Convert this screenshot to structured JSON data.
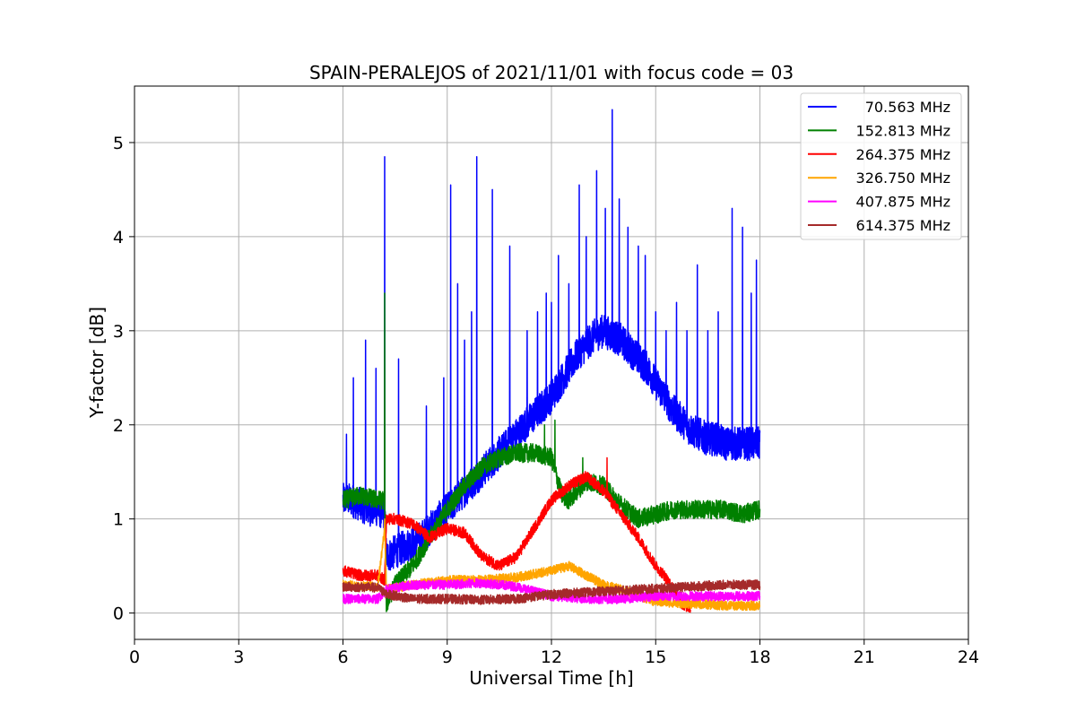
{
  "chart_data": {
    "type": "line",
    "title": "SPAIN-PERALEJOS of 2021/11/01 with focus code = 03",
    "xlabel": "Universal Time [h]",
    "ylabel": "Y-factor [dB]",
    "xlim": [
      0,
      24
    ],
    "ylim": [
      -0.28,
      5.6
    ],
    "xticks": [
      0,
      3,
      6,
      9,
      12,
      15,
      18,
      21,
      24
    ],
    "yticks": [
      0,
      1,
      2,
      3,
      4,
      5
    ],
    "grid": true,
    "legend_position": "top-right",
    "series": [
      {
        "name": "70.563 MHz",
        "color": "#0000ff",
        "x": [
          6.0,
          6.25,
          6.5,
          6.75,
          7.0,
          7.2,
          7.25,
          7.5,
          7.75,
          8.0,
          8.25,
          8.5,
          8.75,
          9.0,
          9.25,
          9.5,
          9.75,
          10.0,
          10.25,
          10.5,
          10.75,
          11.0,
          11.25,
          11.5,
          11.75,
          12.0,
          12.25,
          12.5,
          12.75,
          13.0,
          13.25,
          13.5,
          13.75,
          14.0,
          14.25,
          14.5,
          14.75,
          15.0,
          15.25,
          15.5,
          15.75,
          16.0,
          16.25,
          16.5,
          16.75,
          17.0,
          17.25,
          17.5,
          17.75,
          18.0
        ],
        "y": [
          1.2,
          1.2,
          1.15,
          1.1,
          1.1,
          1.05,
          0.6,
          0.65,
          0.7,
          0.75,
          0.8,
          0.9,
          1.0,
          1.1,
          1.2,
          1.3,
          1.4,
          1.5,
          1.6,
          1.7,
          1.8,
          1.9,
          2.0,
          2.1,
          2.2,
          2.3,
          2.45,
          2.6,
          2.75,
          2.85,
          2.95,
          3.0,
          2.95,
          2.9,
          2.8,
          2.7,
          2.6,
          2.45,
          2.3,
          2.15,
          2.05,
          1.95,
          1.9,
          1.85,
          1.85,
          1.8,
          1.8,
          1.8,
          1.8,
          1.8
        ],
        "spikes": [
          [
            6.1,
            1.9
          ],
          [
            6.3,
            2.5
          ],
          [
            6.65,
            2.9
          ],
          [
            6.95,
            2.6
          ],
          [
            7.2,
            4.85
          ],
          [
            7.6,
            2.7
          ],
          [
            8.4,
            2.2
          ],
          [
            8.9,
            2.5
          ],
          [
            9.1,
            4.55
          ],
          [
            9.3,
            3.5
          ],
          [
            9.5,
            2.9
          ],
          [
            9.7,
            3.2
          ],
          [
            9.85,
            4.85
          ],
          [
            10.3,
            4.5
          ],
          [
            10.8,
            3.9
          ],
          [
            11.3,
            3.0
          ],
          [
            11.6,
            3.2
          ],
          [
            11.85,
            3.4
          ],
          [
            12.0,
            3.3
          ],
          [
            12.2,
            3.8
          ],
          [
            12.5,
            3.5
          ],
          [
            12.8,
            4.55
          ],
          [
            13.0,
            4.0
          ],
          [
            13.3,
            4.7
          ],
          [
            13.55,
            4.3
          ],
          [
            13.75,
            5.35
          ],
          [
            13.95,
            4.4
          ],
          [
            14.2,
            4.1
          ],
          [
            14.5,
            3.9
          ],
          [
            14.7,
            3.8
          ],
          [
            15.0,
            3.2
          ],
          [
            15.3,
            3.0
          ],
          [
            15.6,
            3.3
          ],
          [
            15.9,
            3.0
          ],
          [
            16.2,
            3.7
          ],
          [
            16.5,
            3.0
          ],
          [
            16.8,
            3.2
          ],
          [
            17.2,
            4.3
          ],
          [
            17.5,
            4.1
          ],
          [
            17.75,
            3.4
          ],
          [
            17.9,
            3.75
          ]
        ],
        "noise": 0.18
      },
      {
        "name": "152.813 MHz",
        "color": "#008000",
        "x": [
          6.0,
          6.5,
          7.0,
          7.2,
          7.25,
          7.5,
          8.0,
          8.5,
          9.0,
          9.5,
          10.0,
          10.5,
          11.0,
          11.5,
          12.0,
          12.3,
          12.5,
          13.0,
          13.5,
          14.0,
          14.5,
          15.0,
          15.5,
          16.0,
          16.5,
          17.0,
          17.5,
          18.0
        ],
        "y": [
          1.2,
          1.25,
          1.2,
          1.2,
          0.1,
          0.3,
          0.5,
          0.8,
          1.1,
          1.35,
          1.55,
          1.65,
          1.7,
          1.7,
          1.65,
          1.25,
          1.2,
          1.4,
          1.35,
          1.15,
          1.0,
          1.05,
          1.1,
          1.1,
          1.1,
          1.1,
          1.05,
          1.1
        ],
        "spikes": [
          [
            7.2,
            3.4
          ],
          [
            11.8,
            2.0
          ],
          [
            12.1,
            2.05
          ],
          [
            12.9,
            1.65
          ]
        ],
        "noise": 0.1
      },
      {
        "name": "264.375 MHz",
        "color": "#ff0000",
        "x": [
          6.0,
          6.5,
          7.0,
          7.2,
          7.25,
          7.5,
          8.0,
          8.5,
          9.0,
          9.5,
          10.0,
          10.5,
          11.0,
          11.5,
          12.0,
          12.5,
          13.0,
          13.5,
          14.0,
          14.5,
          15.0,
          15.25,
          15.5,
          15.75,
          16.0
        ],
        "y": [
          0.45,
          0.4,
          0.4,
          0.35,
          1.0,
          1.0,
          0.95,
          0.8,
          0.9,
          0.85,
          0.6,
          0.5,
          0.6,
          0.9,
          1.2,
          1.35,
          1.45,
          1.3,
          1.05,
          0.8,
          0.5,
          0.4,
          0.25,
          0.1,
          0.05
        ],
        "spikes": [
          [
            13.6,
            1.65
          ]
        ],
        "noise": 0.06
      },
      {
        "name": "326.750 MHz",
        "color": "#ffa500",
        "x": [
          6.0,
          7.0,
          7.2,
          7.25,
          8.0,
          9.0,
          10.0,
          11.0,
          12.0,
          12.5,
          13.0,
          13.5,
          14.0,
          15.0,
          16.0,
          17.0,
          18.0
        ],
        "y": [
          0.3,
          0.28,
          0.9,
          0.25,
          0.3,
          0.35,
          0.35,
          0.38,
          0.45,
          0.5,
          0.4,
          0.3,
          0.25,
          0.12,
          0.1,
          0.08,
          0.08
        ],
        "spikes": [
          [
            7.2,
            1.0
          ]
        ],
        "noise": 0.05
      },
      {
        "name": "407.875 MHz",
        "color": "#ff00ff",
        "x": [
          6.0,
          7.0,
          7.25,
          8.0,
          9.0,
          10.0,
          11.0,
          12.0,
          13.0,
          14.0,
          15.0,
          16.0,
          17.0,
          18.0
        ],
        "y": [
          0.15,
          0.15,
          0.25,
          0.3,
          0.3,
          0.32,
          0.28,
          0.18,
          0.15,
          0.15,
          0.18,
          0.18,
          0.18,
          0.18
        ],
        "spikes": [],
        "noise": 0.05
      },
      {
        "name": "614.375 MHz",
        "color": "#a52a2a",
        "x": [
          6.0,
          7.0,
          7.25,
          8.0,
          9.0,
          10.0,
          11.0,
          12.0,
          13.0,
          14.0,
          15.0,
          16.0,
          17.0,
          18.0
        ],
        "y": [
          0.28,
          0.27,
          0.2,
          0.15,
          0.15,
          0.14,
          0.15,
          0.2,
          0.22,
          0.24,
          0.26,
          0.28,
          0.3,
          0.3
        ],
        "spikes": [],
        "noise": 0.05
      }
    ]
  }
}
